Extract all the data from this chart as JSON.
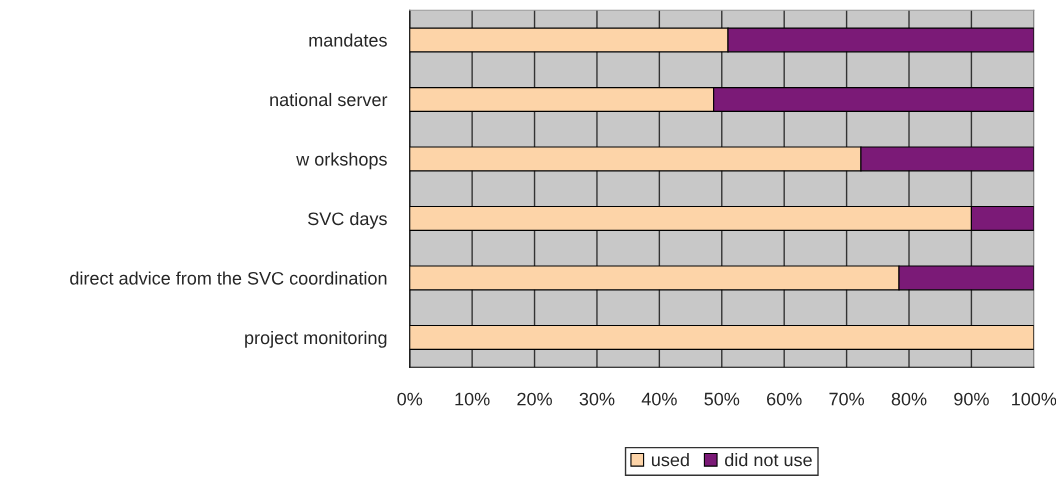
{
  "chart_data": {
    "type": "bar",
    "orientation": "horizontal",
    "stacked": true,
    "categories": [
      "mandates",
      "national server",
      "w orkshops",
      "SVC days",
      "direct advice from the SVC coordination",
      "project monitoring"
    ],
    "series": [
      {
        "name": "used",
        "color": "#fdd4a8",
        "values": [
          51,
          48.7,
          72.3,
          90,
          78.4,
          100
        ]
      },
      {
        "name": "did not use",
        "color": "#7b1a77",
        "values": [
          49,
          51.3,
          27.7,
          10,
          21.6,
          null
        ]
      }
    ],
    "xlim": [
      0,
      100
    ],
    "xticks": [
      {
        "value": 0,
        "label": "0%"
      },
      {
        "value": 10,
        "label": "10%"
      },
      {
        "value": 20,
        "label": "20%"
      },
      {
        "value": 30,
        "label": "30%"
      },
      {
        "value": 40,
        "label": "40%"
      },
      {
        "value": 50,
        "label": "50%"
      },
      {
        "value": 60,
        "label": "60%"
      },
      {
        "value": 70,
        "label": "70%"
      },
      {
        "value": 80,
        "label": "80%"
      },
      {
        "value": 90,
        "label": "90%"
      },
      {
        "value": 100,
        "label": "100%"
      }
    ],
    "grid": "x",
    "legend": "bottom"
  }
}
